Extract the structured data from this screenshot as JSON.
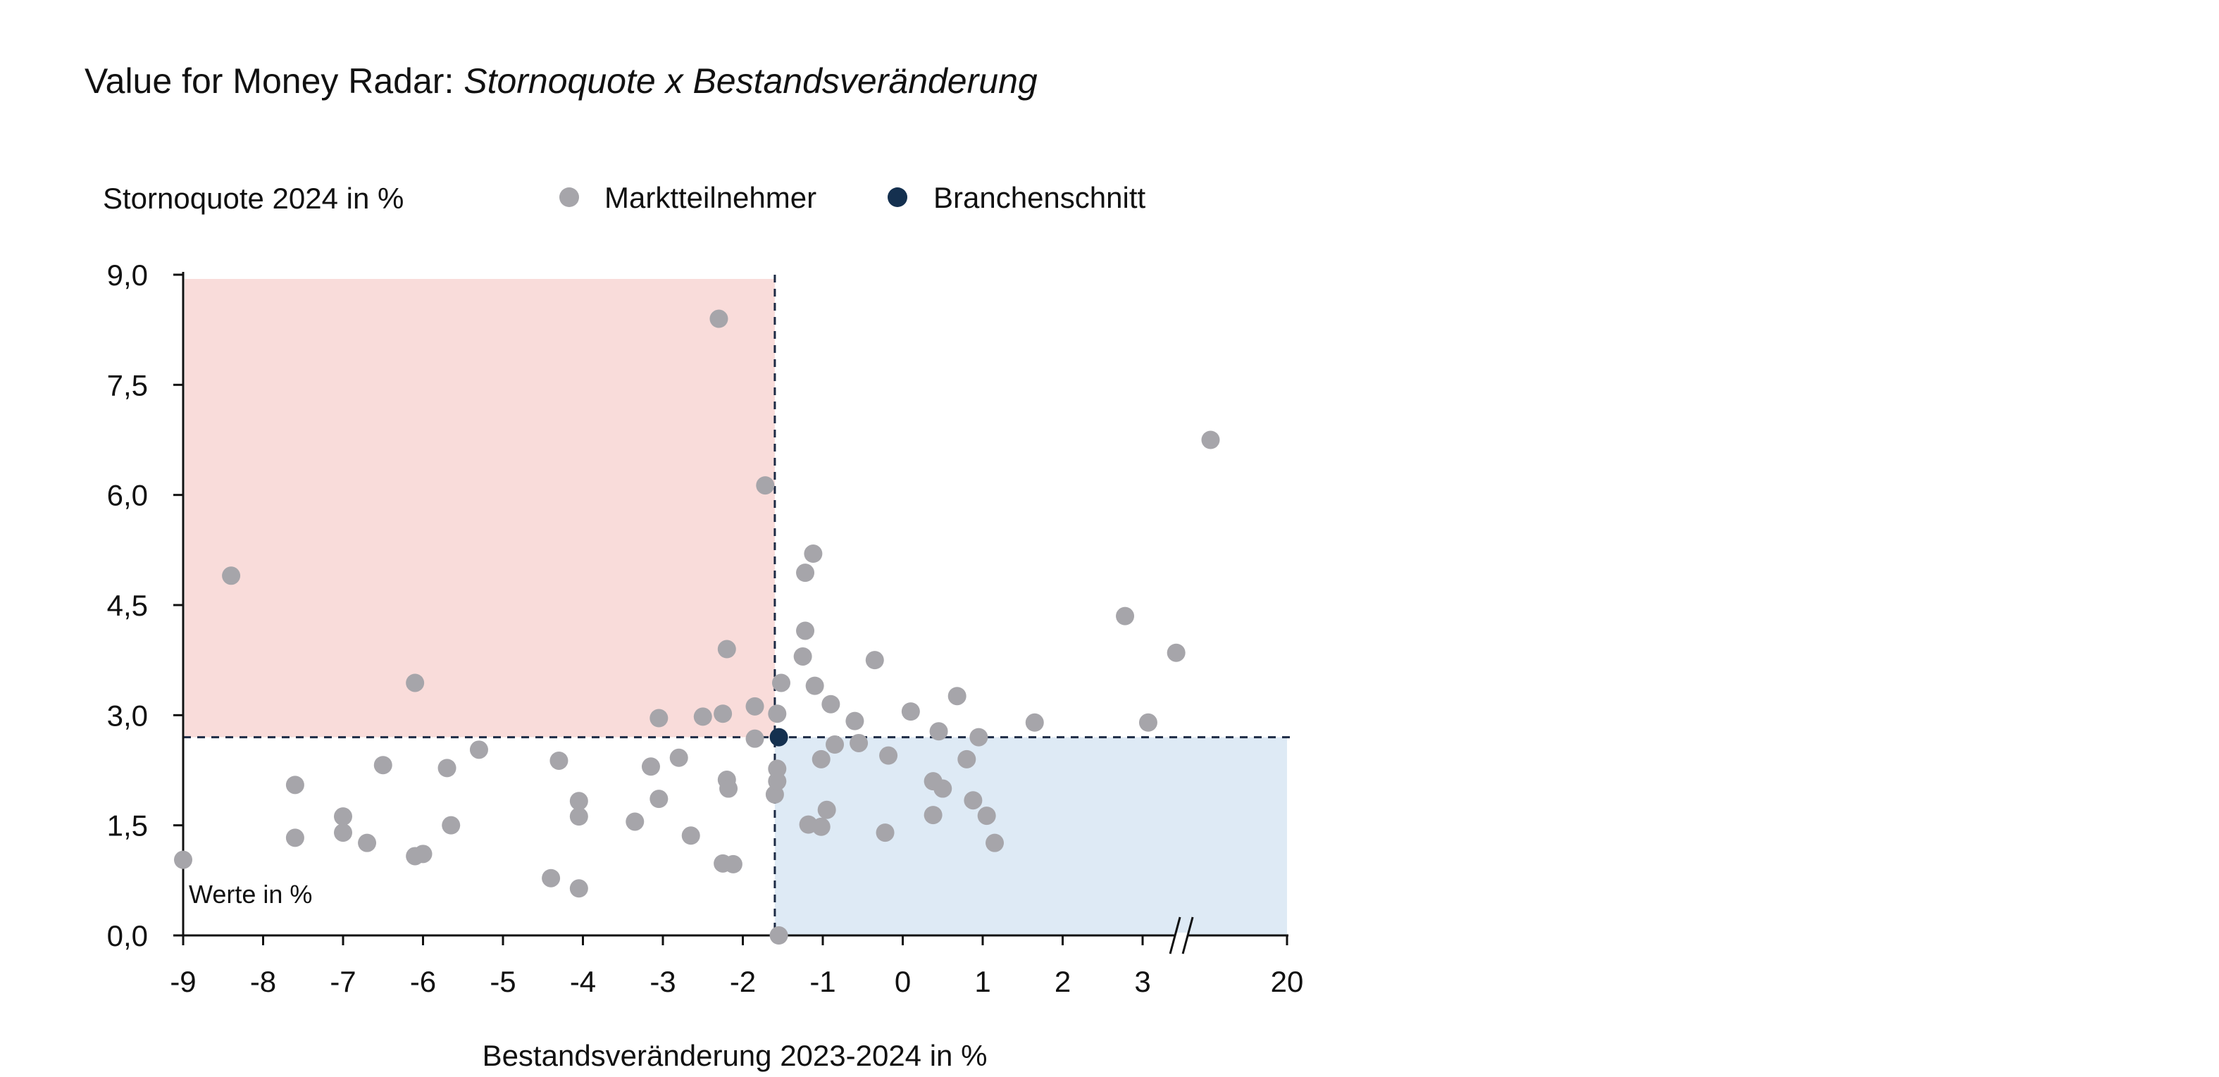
{
  "colors": {
    "participant": "#A6A5AA",
    "average": "#14304F",
    "quad_red": "#F9DCDA",
    "quad_blue": "#DEEAF5",
    "axis": "#111111",
    "refline": "#1D2B45"
  },
  "chart_data": {
    "type": "scatter",
    "title_prefix": "Value for Money Radar: ",
    "title_italic": "Stornoquote x Bestandsveränderung",
    "ylabel": "Stornoquote 2024 in %",
    "xlabel": "Bestandsveränderung 2023-2024 in %",
    "note": "Werte in %",
    "x_ticks": [
      "-9",
      "-8",
      "-7",
      "-6",
      "-5",
      "-4",
      "-3",
      "-2",
      "-1",
      "0",
      "1",
      "2",
      "3",
      "20"
    ],
    "y_ticks": [
      "0,0",
      "1,5",
      "3,0",
      "4,5",
      "6,0",
      "7,5",
      "9,0"
    ],
    "xlim": [
      -9,
      20
    ],
    "ylim": [
      0,
      9
    ],
    "x_axis_break": true,
    "legend": [
      {
        "name": "Marktteilnehmer",
        "color": "#A6A5AA"
      },
      {
        "name": "Branchenschnitt",
        "color": "#14304F"
      }
    ],
    "reference_lines": {
      "x": -1.6,
      "y": 2.7
    },
    "shaded_quadrants": [
      {
        "region": "top-left",
        "color": "#F9DCDA"
      },
      {
        "region": "bottom-right",
        "color": "#DEEAF5"
      }
    ],
    "series": [
      {
        "name": "Marktteilnehmer",
        "points": [
          [
            -9.0,
            1.03
          ],
          [
            -8.4,
            4.9
          ],
          [
            -7.6,
            2.05
          ],
          [
            -7.6,
            1.33
          ],
          [
            -7.0,
            1.62
          ],
          [
            -7.0,
            1.4
          ],
          [
            -6.7,
            1.26
          ],
          [
            -6.5,
            2.32
          ],
          [
            -6.1,
            3.44
          ],
          [
            -6.1,
            1.08
          ],
          [
            -6.0,
            1.11
          ],
          [
            -5.7,
            2.28
          ],
          [
            -5.65,
            1.5
          ],
          [
            -5.3,
            2.53
          ],
          [
            -4.4,
            0.78
          ],
          [
            -4.3,
            2.38
          ],
          [
            -4.05,
            1.83
          ],
          [
            -4.05,
            1.62
          ],
          [
            -4.05,
            0.64
          ],
          [
            -3.35,
            1.55
          ],
          [
            -3.15,
            2.3
          ],
          [
            -3.05,
            2.96
          ],
          [
            -3.05,
            1.86
          ],
          [
            -2.8,
            2.42
          ],
          [
            -2.65,
            1.36
          ],
          [
            -2.5,
            2.98
          ],
          [
            -2.3,
            8.4
          ],
          [
            -2.25,
            3.02
          ],
          [
            -2.25,
            0.98
          ],
          [
            -2.2,
            3.9
          ],
          [
            -2.2,
            2.12
          ],
          [
            -2.18,
            2.0
          ],
          [
            -2.12,
            0.97
          ],
          [
            -1.85,
            3.12
          ],
          [
            -1.85,
            2.68
          ],
          [
            -1.72,
            6.13
          ],
          [
            -1.6,
            1.92
          ],
          [
            -1.57,
            3.02
          ],
          [
            -1.57,
            2.27
          ],
          [
            -1.57,
            2.1
          ],
          [
            -1.52,
            3.44
          ],
          [
            -1.55,
            0.0
          ],
          [
            -1.25,
            3.8
          ],
          [
            -1.22,
            4.94
          ],
          [
            -1.22,
            4.15
          ],
          [
            -1.18,
            1.51
          ],
          [
            -1.12,
            5.2
          ],
          [
            -1.1,
            3.4
          ],
          [
            -1.02,
            2.4
          ],
          [
            -1.02,
            1.48
          ],
          [
            -0.95,
            1.71
          ],
          [
            -0.9,
            3.15
          ],
          [
            -0.85,
            2.6
          ],
          [
            -0.6,
            2.92
          ],
          [
            -0.55,
            2.62
          ],
          [
            -0.35,
            3.75
          ],
          [
            -0.22,
            1.4
          ],
          [
            -0.18,
            2.45
          ],
          [
            0.1,
            3.05
          ],
          [
            0.38,
            2.1
          ],
          [
            0.38,
            1.64
          ],
          [
            0.45,
            2.78
          ],
          [
            0.5,
            2.0
          ],
          [
            0.68,
            3.26
          ],
          [
            0.8,
            2.4
          ],
          [
            0.88,
            1.84
          ],
          [
            0.95,
            2.7
          ],
          [
            1.05,
            1.63
          ],
          [
            1.15,
            1.26
          ],
          [
            1.65,
            2.9
          ],
          [
            2.78,
            4.35
          ],
          [
            3.07,
            2.9
          ],
          [
            3.42,
            3.85
          ],
          [
            3.85,
            6.75
          ]
        ]
      },
      {
        "name": "Branchenschnitt",
        "points": [
          [
            -1.55,
            2.7
          ]
        ]
      }
    ]
  }
}
